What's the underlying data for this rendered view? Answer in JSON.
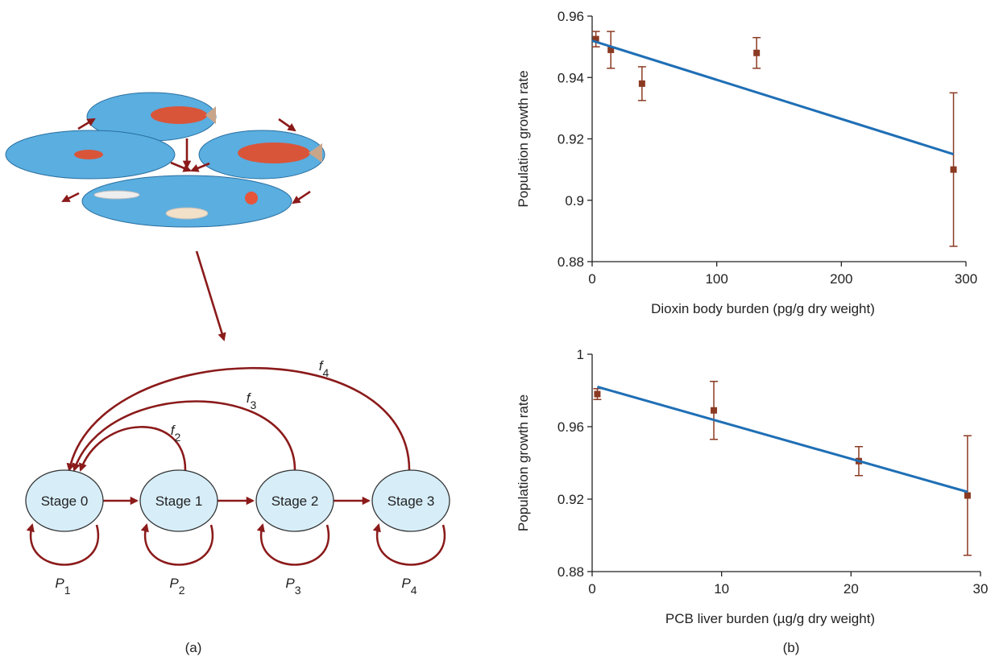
{
  "chart_data": [
    {
      "type": "scatter",
      "x_label": "Dioxin body burden (pg/g dry weight)",
      "y_label": "Population growth rate",
      "xlim": [
        0,
        300
      ],
      "xticks": [
        0,
        100,
        200,
        300
      ],
      "ylim": [
        0.88,
        0.96
      ],
      "yticks": [
        0.88,
        0.9,
        0.92,
        0.94,
        0.96
      ],
      "series": [
        {
          "color": "#8b3a22",
          "x": [
            3,
            15,
            40,
            132,
            290
          ],
          "values": [
            0.9525,
            0.949,
            0.938,
            0.948,
            0.91
          ],
          "errors": [
            0.0025,
            0.006,
            0.0055,
            0.005,
            0.025
          ]
        }
      ],
      "fit": {
        "color": "#1f6fb5",
        "x": [
          0,
          290
        ],
        "values": [
          0.952,
          0.915
        ]
      }
    },
    {
      "type": "scatter",
      "x_label": "PCB liver burden (µg/g dry weight)",
      "y_label": "Population growth rate",
      "xlim": [
        0,
        30
      ],
      "xticks": [
        0,
        10,
        20,
        30
      ],
      "ylim": [
        0.88,
        1
      ],
      "yticks": [
        0.88,
        0.92,
        0.96,
        1
      ],
      "series": [
        {
          "color": "#8b3a22",
          "x": [
            0.4,
            9.4,
            20.6,
            29
          ],
          "values": [
            0.978,
            0.969,
            0.941,
            0.922
          ],
          "errors": [
            0.003,
            0.016,
            0.008,
            0.033
          ]
        }
      ],
      "fit": {
        "color": "#1f6fb5",
        "x": [
          0.4,
          29
        ],
        "values": [
          0.982,
          0.924
        ]
      }
    }
  ],
  "diagram": {
    "nodes": [
      {
        "label": "Stage 0"
      },
      {
        "label": "Stage 1"
      },
      {
        "label": "Stage 2"
      },
      {
        "label": "Stage 3"
      }
    ],
    "survival": [
      {
        "symbol": "P",
        "subscript": "1"
      },
      {
        "symbol": "P",
        "subscript": "2"
      },
      {
        "symbol": "P",
        "subscript": "3"
      },
      {
        "symbol": "P",
        "subscript": "4"
      }
    ],
    "fecundity": [
      {
        "symbol": "f",
        "subscript": "2"
      },
      {
        "symbol": "f",
        "subscript": "3"
      },
      {
        "symbol": "f",
        "subscript": "4"
      }
    ]
  },
  "panel_labels": [
    "(a)",
    "(b)"
  ]
}
